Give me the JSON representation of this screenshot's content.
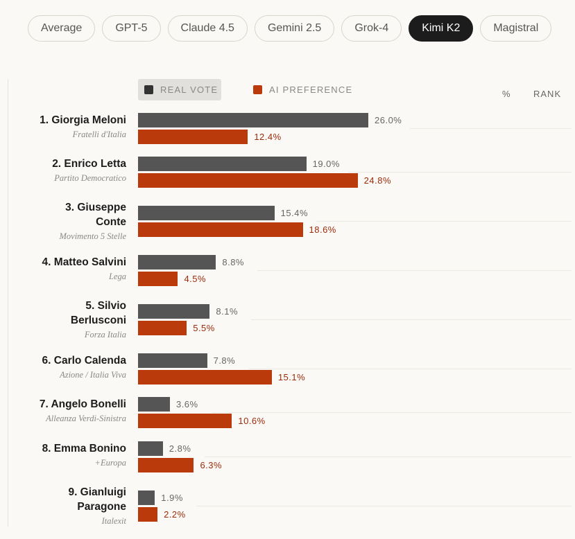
{
  "tabs": [
    "Average",
    "GPT-5",
    "Claude 4.5",
    "Gemini 2.5",
    "Grok-4",
    "Kimi K2",
    "Magistral"
  ],
  "active_tab": "Kimi K2",
  "legend": {
    "real_vote": "REAL VOTE",
    "ai_preference": "AI PREFERENCE",
    "pct_header": "%",
    "rank_header": "RANK"
  },
  "colors": {
    "real": "#555555",
    "ai": "#bb3a0c",
    "active_tab_bg": "#1c1c1c"
  },
  "chart_data": {
    "type": "bar",
    "orientation": "horizontal",
    "categories": [
      "1. Giorgia Meloni",
      "2. Enrico Letta",
      "3. Giuseppe Conte",
      "4. Matteo Salvini",
      "5. Silvio Berlusconi",
      "6. Carlo Calenda",
      "7. Angelo Bonelli",
      "8. Emma Bonino",
      "9. Gianluigi Paragone"
    ],
    "name_lines": [
      [
        "1.  Giorgia Meloni"
      ],
      [
        "2.  Enrico Letta"
      ],
      [
        "3.  Giuseppe",
        "Conte"
      ],
      [
        "4.  Matteo Salvini"
      ],
      [
        "5.  Silvio",
        "Berlusconi"
      ],
      [
        "6.  Carlo Calenda"
      ],
      [
        "7.  Angelo Bonelli"
      ],
      [
        "8.  Emma Bonino"
      ],
      [
        "9.  Gianluigi",
        "Paragone"
      ]
    ],
    "parties": [
      "Fratelli d'Italia",
      "Partito Democratico",
      "Movimento 5 Stelle",
      "Lega",
      "Forza Italia",
      "Azione / Italia Viva",
      "Alleanza Verdi-Sinistra",
      "+Europa",
      "Italexit"
    ],
    "series": [
      {
        "name": "REAL VOTE",
        "values": [
          26.0,
          19.0,
          15.4,
          8.8,
          8.1,
          7.8,
          3.6,
          2.8,
          1.9
        ]
      },
      {
        "name": "AI PREFERENCE",
        "values": [
          12.4,
          24.8,
          18.6,
          4.5,
          5.5,
          15.1,
          10.6,
          6.3,
          2.2
        ]
      }
    ],
    "unit": "%",
    "xlim": [
      0,
      26.0
    ]
  }
}
